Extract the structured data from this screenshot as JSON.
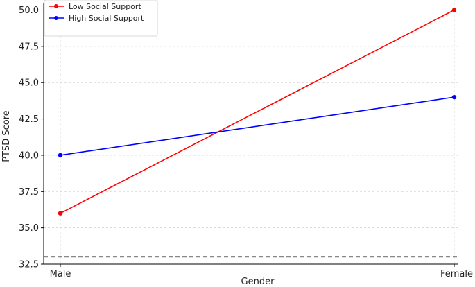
{
  "chart_data": {
    "type": "line",
    "categories": [
      "Male",
      "Female"
    ],
    "series": [
      {
        "name": "Low Social Support",
        "values": [
          36.0,
          50.0
        ],
        "color": "#ff0000"
      },
      {
        "name": "High Social Support",
        "values": [
          40.0,
          44.0
        ],
        "color": "#0000ff"
      }
    ],
    "xlabel": "Gender",
    "ylabel": "PTSD Score",
    "ylim": [
      32.5,
      50.5
    ],
    "yticks": [
      32.5,
      35.0,
      37.5,
      40.0,
      42.5,
      45.0,
      47.5,
      50.0
    ],
    "ytick_labels": [
      "32.5",
      "35.0",
      "37.5",
      "40.0",
      "42.5",
      "45.0",
      "47.5",
      "50.0"
    ],
    "reference_line": {
      "y": 33.0,
      "style": "dashed",
      "color": "#888888"
    },
    "grid": true,
    "legend_position": "top-left"
  }
}
